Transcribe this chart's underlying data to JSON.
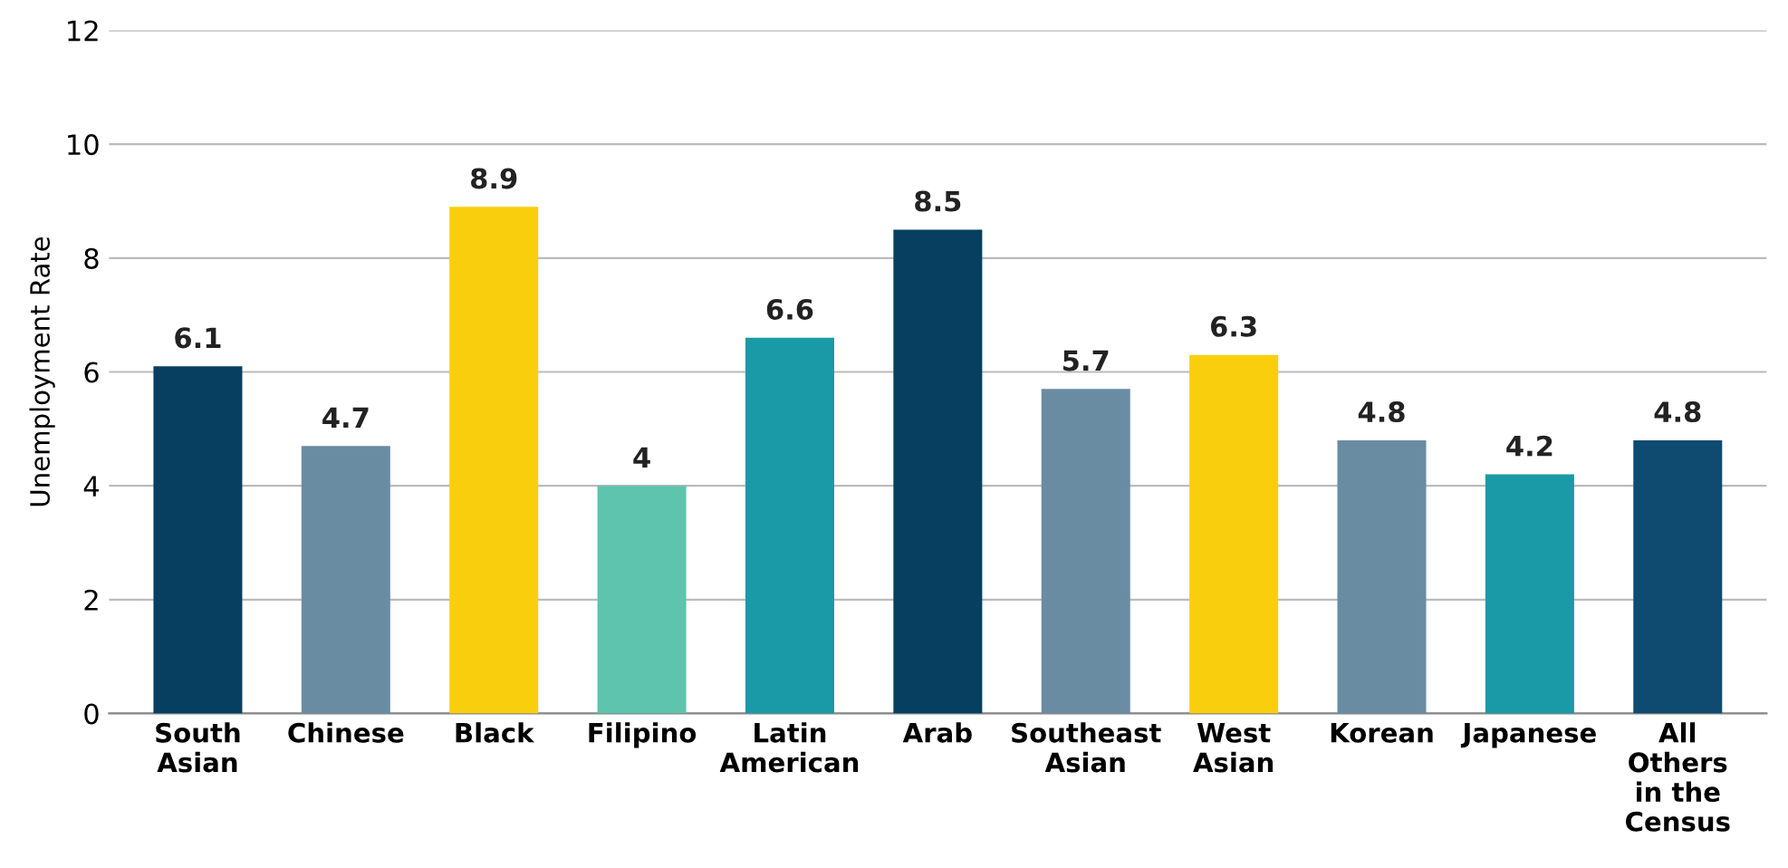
{
  "chart_data": {
    "type": "bar",
    "ylabel": "Unemployment Rate",
    "categories": [
      "South Asian",
      "Chinese",
      "Black",
      "Filipino",
      "Latin American",
      "Arab",
      "Southeast Asian",
      "West Asian",
      "Korean",
      "Japanese",
      "All Others in the Census"
    ],
    "values": [
      6.1,
      4.7,
      8.9,
      4,
      6.6,
      8.5,
      5.7,
      6.3,
      4.8,
      4.2,
      4.8
    ],
    "colors": [
      "#073f60",
      "#6a8ca3",
      "#f9cf0d",
      "#5ec4ad",
      "#1a9aa6",
      "#073f60",
      "#6a8ca3",
      "#f9cf0d",
      "#6a8ca3",
      "#1a9aa6",
      "#0f4a70"
    ],
    "ylim": [
      0,
      12
    ],
    "yticks": [
      0,
      2,
      4,
      6,
      8,
      10,
      12
    ],
    "grid": "y",
    "data_labels": true,
    "legend": false
  }
}
